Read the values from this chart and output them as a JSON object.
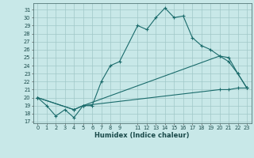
{
  "xlabel": "Humidex (Indice chaleur)",
  "bg_color": "#c8e8e8",
  "grid_color": "#a0c8c8",
  "line_color": "#1a6b6b",
  "xlim": [
    -0.5,
    23.5
  ],
  "ylim": [
    16.8,
    31.8
  ],
  "xticks": [
    0,
    1,
    2,
    3,
    4,
    5,
    6,
    7,
    8,
    9,
    11,
    12,
    13,
    14,
    15,
    16,
    17,
    18,
    19,
    20,
    21,
    22,
    23
  ],
  "yticks": [
    17,
    18,
    19,
    20,
    21,
    22,
    23,
    24,
    25,
    26,
    27,
    28,
    29,
    30,
    31
  ],
  "line1_x": [
    0,
    1,
    2,
    3,
    4,
    5,
    6,
    7,
    8,
    9,
    11,
    12,
    13,
    14,
    15,
    16,
    17,
    18,
    19,
    20,
    21,
    22,
    23
  ],
  "line1_y": [
    20,
    19,
    17.7,
    18.5,
    17.5,
    19,
    19,
    22,
    24,
    24.5,
    29,
    28.5,
    30,
    31.2,
    30,
    30.2,
    27.5,
    26.5,
    26,
    25.2,
    24.5,
    23,
    21.2
  ],
  "line2_x": [
    0,
    4,
    5,
    20,
    21,
    22,
    23
  ],
  "line2_y": [
    20,
    18.5,
    19,
    25.2,
    25,
    23,
    21.2
  ],
  "line3_x": [
    0,
    4,
    5,
    20,
    21,
    22,
    23
  ],
  "line3_y": [
    20,
    18.5,
    19,
    21,
    21,
    21.2,
    21.2
  ]
}
